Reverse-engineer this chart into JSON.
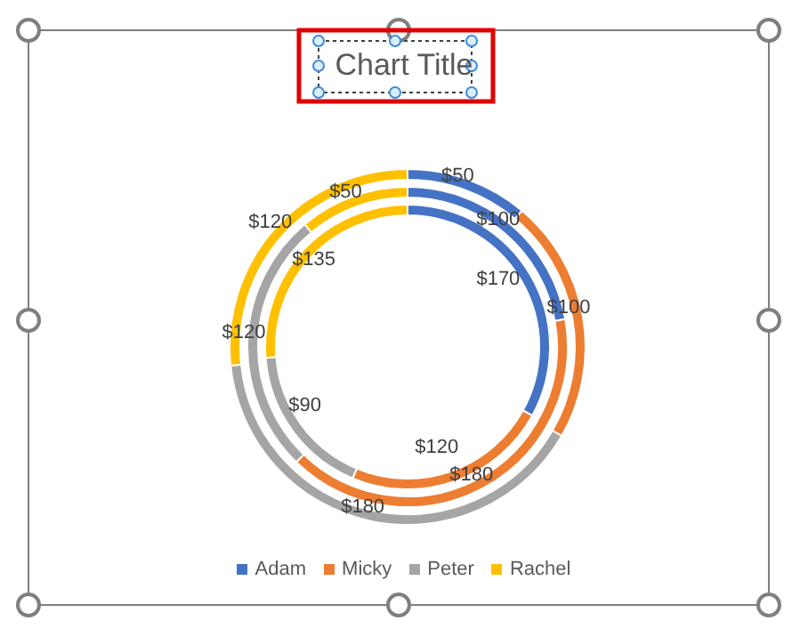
{
  "chart_data": {
    "type": "donut",
    "title": "Chart Title",
    "categories": [
      "Adam",
      "Micky",
      "Peter",
      "Rachel"
    ],
    "colors": [
      "#4472c4",
      "#ed7d31",
      "#a5a5a5",
      "#ffc000"
    ],
    "series": [
      {
        "values": [
          50,
          100,
          180,
          120
        ],
        "value_labels": [
          "$50",
          "$100",
          "$180",
          "$120"
        ]
      },
      {
        "values": [
          100,
          180,
          120,
          50
        ],
        "value_labels": [
          "$100",
          "$180",
          "$120",
          "$50"
        ]
      },
      {
        "values": [
          170,
          120,
          90,
          135
        ],
        "value_labels": [
          "$170",
          "$120",
          "$90",
          "$135"
        ]
      }
    ],
    "legend": "bottom"
  }
}
